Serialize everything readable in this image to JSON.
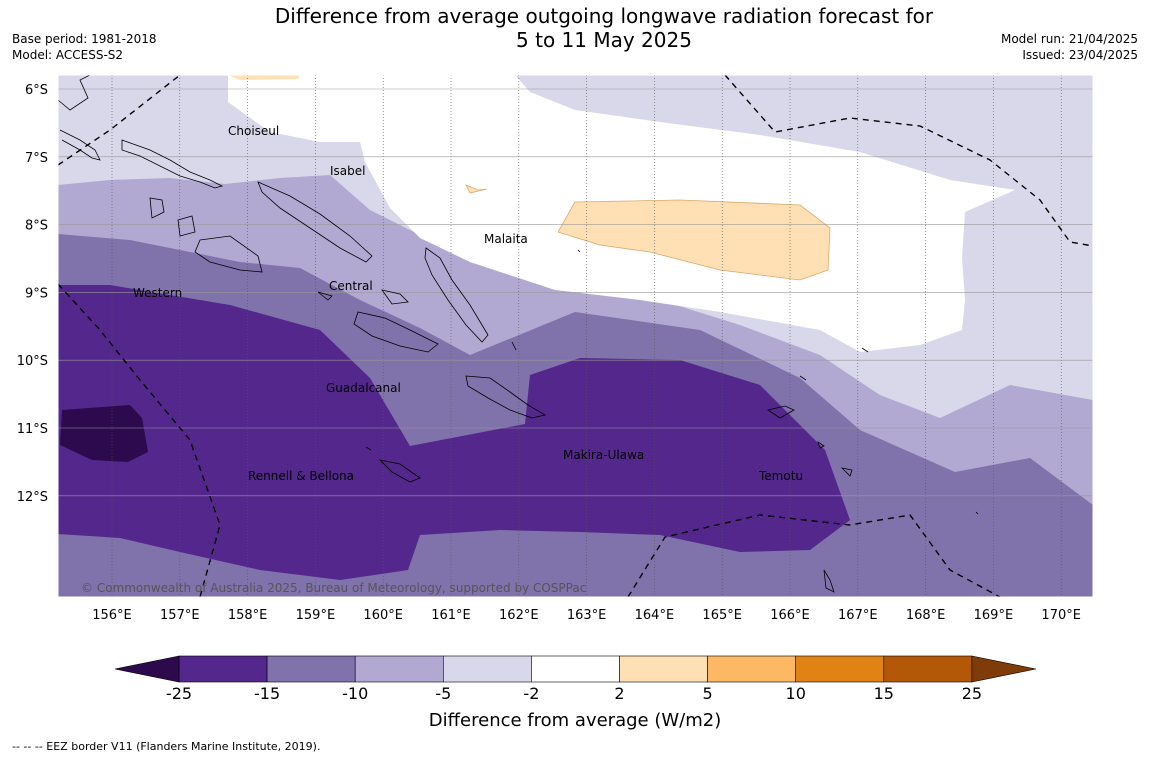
{
  "title": {
    "line1": "Difference from average outgoing longwave radiation forecast for",
    "line2": "5 to 11 May 2025"
  },
  "meta": {
    "base_period": "Base period: 1981-2018",
    "model": "Model: ACCESS-S2",
    "model_run": "Model run: 21/04/2025",
    "issued": "Issued: 23/04/2025"
  },
  "map": {
    "lat_labels": [
      "6°S",
      "7°S",
      "8°S",
      "9°S",
      "10°S",
      "11°S",
      "12°S"
    ],
    "lon_labels": [
      "156°E",
      "157°E",
      "158°E",
      "159°E",
      "160°E",
      "161°E",
      "162°E",
      "163°E",
      "164°E",
      "165°E",
      "166°E",
      "167°E",
      "168°E",
      "169°E",
      "170°E"
    ],
    "places": {
      "choiseul": "Choiseul",
      "isabel": "Isabel",
      "malaita": "Malaita",
      "central": "Central",
      "western": "Western",
      "guadalcanal": "Guadalcanal",
      "rennell_bellona": "Rennell & Bellona",
      "makira_ulawa": "Makira-Ulawa",
      "temotu": "Temotu"
    },
    "copyright": "© Commonwealth of Australia 2025, Bureau of Meteorology, supported by COSPPac"
  },
  "colorbar": {
    "title": "Difference from average (W/m2)",
    "ticks": [
      "-25",
      "-15",
      "-10",
      "-5",
      "-2",
      "2",
      "5",
      "10",
      "15",
      "25"
    ],
    "colors": {
      "below_-25": "#2d0a4e",
      "-25_-15": "#53278b",
      "-15_-10": "#8072ab",
      "-10_-5": "#b1a9d2",
      "-5_-2": "#d9d8ea",
      "-2_2": "#ffffff",
      "2_5": "#fee0b4",
      "5_10": "#fdb863",
      "10_15": "#e08214",
      "15_25": "#b35806",
      "above_25": "#7f3b08"
    }
  },
  "footnote": "--  --  -- EEZ border V11 (Flanders Marine Institute, 2019)."
}
